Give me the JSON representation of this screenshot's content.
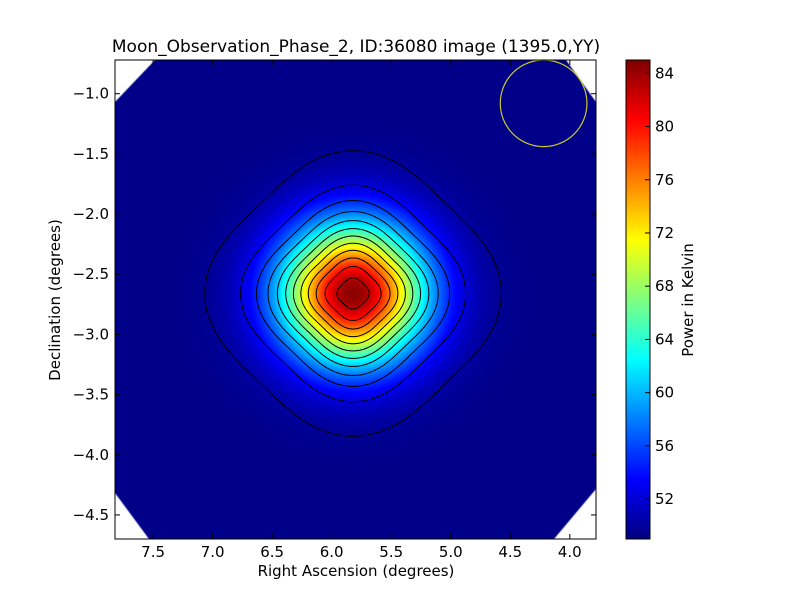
{
  "chart_data": {
    "type": "heatmap",
    "title": "Moon_Observation_Phase_2, ID:36080 image (1395.0,YY)",
    "xlabel": "Right Ascension (degrees)",
    "ylabel": "Declination (degrees)",
    "colorbar_label": "Power in Kelvin",
    "xlim": [
      7.82,
      3.78
    ],
    "ylim": [
      -4.7,
      -0.72
    ],
    "x_ticks": [
      7.5,
      7.0,
      6.5,
      6.0,
      5.5,
      5.0,
      4.5,
      4.0
    ],
    "x_tick_labels": [
      "7.5",
      "7.0",
      "6.5",
      "6.0",
      "5.5",
      "5.0",
      "4.5",
      "4.0"
    ],
    "y_ticks": [
      -1.0,
      -1.5,
      -2.0,
      -2.5,
      -3.0,
      -3.5,
      -4.0,
      -4.5
    ],
    "y_tick_labels": [
      "−1.0",
      "−1.5",
      "−2.0",
      "−2.5",
      "−3.0",
      "−3.5",
      "−4.0",
      "−4.5"
    ],
    "color_range": [
      49.0,
      85.0
    ],
    "colorbar_ticks": [
      52,
      56,
      60,
      64,
      68,
      72,
      76,
      80,
      84
    ],
    "colorbar_tick_labels": [
      "52",
      "56",
      "60",
      "64",
      "68",
      "72",
      "76",
      "80",
      "84"
    ],
    "colormap": "jet",
    "source": {
      "ra": 5.82,
      "dec": -2.66,
      "peak": 84.6,
      "background": 49.3,
      "sigma_ra": 0.42,
      "sigma_dec": 0.4
    },
    "contour_levels": [
      50.0,
      53,
      56,
      59,
      62,
      65,
      68,
      71,
      74,
      77,
      80,
      83
    ],
    "beam_circle": {
      "ra": 4.22,
      "dec": -1.08,
      "radius_deg": 0.36,
      "color": "#c8c82a"
    },
    "grid": false,
    "legend": "none"
  }
}
